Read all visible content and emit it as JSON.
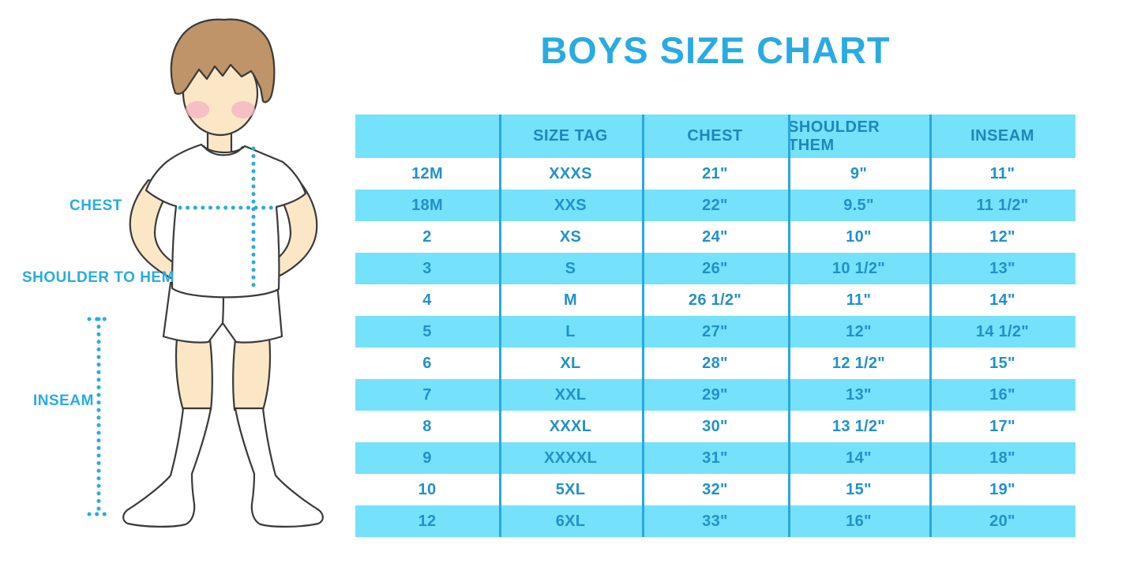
{
  "title": "BOYS SIZE CHART",
  "figure": {
    "labels": {
      "chest": "CHEST",
      "shoulder_to_hem": "SHOULDER TO HEM",
      "inseam": "INSEAM"
    }
  },
  "colors": {
    "accent_blue": "#29ABE2",
    "band_cyan": "#75E1FB",
    "separator_blue": "#2AA8DB",
    "header_text_blue": "#1F86BB",
    "table_text_blue": "#2191C9",
    "hair_brown": "#BE9468",
    "skin": "#FBE7C6",
    "blush_pink": "#F3B3C2"
  },
  "chart_data": {
    "type": "table",
    "title": "BOYS SIZE CHART",
    "columns": [
      "",
      "SIZE TAG",
      "CHEST",
      "SHOULDER THEM",
      "INSEAM"
    ],
    "rows": [
      [
        "12M",
        "XXXS",
        "21\"",
        "9\"",
        "11\""
      ],
      [
        "18M",
        "XXS",
        "22\"",
        "9.5\"",
        "11 1/2\""
      ],
      [
        "2",
        "XS",
        "24\"",
        "10\"",
        "12\""
      ],
      [
        "3",
        "S",
        "26\"",
        "10 1/2\"",
        "13\""
      ],
      [
        "4",
        "M",
        "26 1/2\"",
        "11\"",
        "14\""
      ],
      [
        "5",
        "L",
        "27\"",
        "12\"",
        "14 1/2\""
      ],
      [
        "6",
        "XL",
        "28\"",
        "12 1/2\"",
        "15\""
      ],
      [
        "7",
        "XXL",
        "29\"",
        "13\"",
        "16\""
      ],
      [
        "8",
        "XXXL",
        "30\"",
        "13 1/2\"",
        "17\""
      ],
      [
        "9",
        "XXXXL",
        "31\"",
        "14\"",
        "18\""
      ],
      [
        "10",
        "5XL",
        "32\"",
        "15\"",
        "19\""
      ],
      [
        "12",
        "6XL",
        "33\"",
        "16\"",
        "20\""
      ]
    ],
    "layout": {
      "header_background": "cyan",
      "row_striping": "alternating white / cyan starting with white",
      "column_separators": true
    }
  }
}
